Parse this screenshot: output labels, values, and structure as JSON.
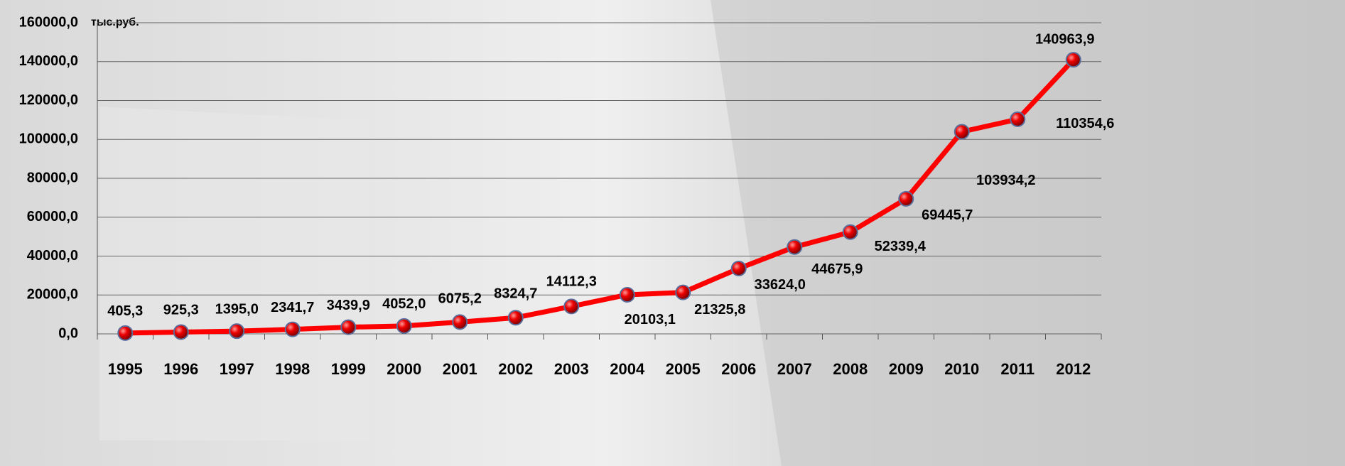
{
  "chart_data": {
    "type": "line",
    "y_axis_label": "тыс.руб.",
    "categories": [
      "1995",
      "1996",
      "1997",
      "1998",
      "1999",
      "2000",
      "2001",
      "2002",
      "2003",
      "2004",
      "2005",
      "2006",
      "2007",
      "2008",
      "2009",
      "2010",
      "2011",
      "2012"
    ],
    "values": [
      405.3,
      925.3,
      1395.0,
      2341.7,
      3439.9,
      4052.0,
      6075.2,
      8324.7,
      14112.3,
      20103.1,
      21325.8,
      33624.0,
      44675.9,
      52339.4,
      69445.7,
      103934.2,
      110354.6,
      140963.9
    ],
    "value_labels": [
      "405,3",
      "925,3",
      "1395,0",
      "2341,7",
      "3439,9",
      "4052,0",
      "6075,2",
      "8324,7",
      "14112,3",
      "20103,1",
      "21325,8",
      "33624,0",
      "44675,9",
      "52339,4",
      "69445,7",
      "103934,2",
      "110354,6",
      "140963,9"
    ],
    "color": "#ff0000",
    "ylim": [
      0,
      160000
    ],
    "yticks": [
      {
        "value": 0,
        "label": "0,0"
      },
      {
        "value": 20000,
        "label": "20000,0"
      },
      {
        "value": 40000,
        "label": "40000,0"
      },
      {
        "value": 60000,
        "label": "60000,0"
      },
      {
        "value": 80000,
        "label": "80000,0"
      },
      {
        "value": 100000,
        "label": "100000,0"
      },
      {
        "value": 120000,
        "label": "120000,0"
      },
      {
        "value": 140000,
        "label": "140000,0"
      },
      {
        "value": 160000,
        "label": "160000,0"
      }
    ],
    "grid": true
  }
}
